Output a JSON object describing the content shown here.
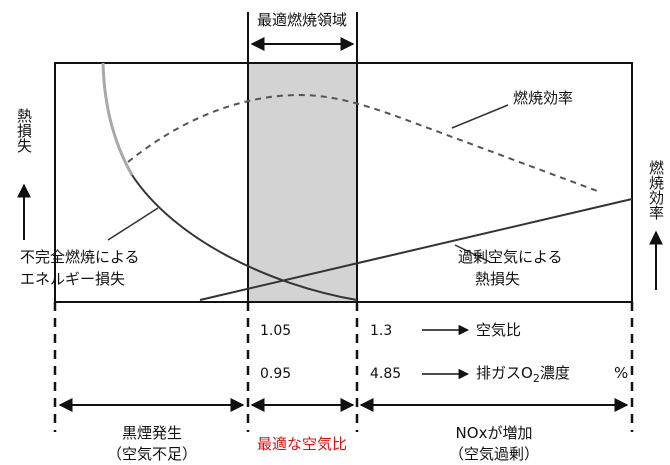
{
  "optimal_region_label": "最適燃焼領域",
  "efficiency_label": "燃焼効率",
  "heat_loss_axis_label": "熱損失",
  "efficiency_axis_label": "燃焼効率",
  "incomplete_loss_label": [
    "不完全燃焼による",
    "エネルギー損失"
  ],
  "excess_air_loss_label": [
    "過剰空気による",
    "熱損失"
  ],
  "air_ratio": {
    "left": "1.05",
    "right": "1.3",
    "label": "空気比"
  },
  "o2": {
    "left": "0.95",
    "right": "4.85",
    "label_prefix": "排ガスO",
    "label_sub": "2",
    "label_suffix": "濃度",
    "unit": "%"
  },
  "bottom": {
    "left": [
      "黒煙発生",
      "（空気不足）"
    ],
    "center": "最適な空気比",
    "right": [
      "NOxが増加",
      "（空気過剰）"
    ]
  },
  "colors": {
    "optimal_fill": "#d3d3d3",
    "center_text": "#e01010",
    "line": "#111111",
    "gray_curve": "#a8a8a8",
    "dashed": "#555555"
  }
}
